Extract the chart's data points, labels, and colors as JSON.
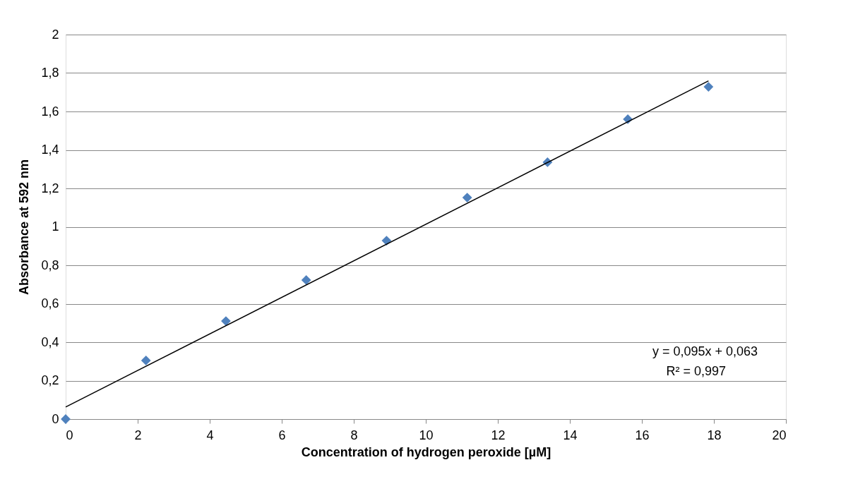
{
  "chart_data": {
    "type": "scatter",
    "xlabel": "Concentration of hydrogen peroxide [µM]",
    "ylabel": "Absorbance at 592  nm",
    "series": [
      {
        "color": "#4f81bd",
        "marker": "diamond",
        "x": [
          0,
          2.23,
          4.45,
          6.68,
          8.91,
          11.15,
          13.38,
          15.61,
          17.85
        ],
        "values": [
          0,
          0.305,
          0.51,
          0.723,
          0.928,
          1.152,
          1.336,
          1.56,
          1.728
        ]
      },
      {
        "type": "line",
        "color": "#000000",
        "marker": "none",
        "x": [
          0,
          17.85
        ],
        "values": [
          0.063,
          1.759
        ]
      }
    ],
    "xlim": [
      0,
      20
    ],
    "xticks": [
      0,
      2,
      4,
      6,
      8,
      10,
      12,
      14,
      16,
      18,
      20
    ],
    "ylim": [
      0,
      2
    ],
    "yticks": [
      0,
      {
        "value": 0.2,
        "label": "0,2"
      },
      {
        "value": 0.4,
        "label": "0,4"
      },
      {
        "value": 0.6,
        "label": "0,6"
      },
      {
        "value": 0.8,
        "label": "0,8"
      },
      1,
      {
        "value": 1.2,
        "label": "1,2"
      },
      {
        "value": 1.4,
        "label": "1,4"
      },
      {
        "value": 1.6,
        "label": "1,6"
      },
      {
        "value": 1.8,
        "label": "1,8"
      },
      2
    ],
    "grid": "y",
    "legend": false,
    "annotations": [
      "y = 0,095x + 0,063",
      "R² = 0,997"
    ]
  }
}
